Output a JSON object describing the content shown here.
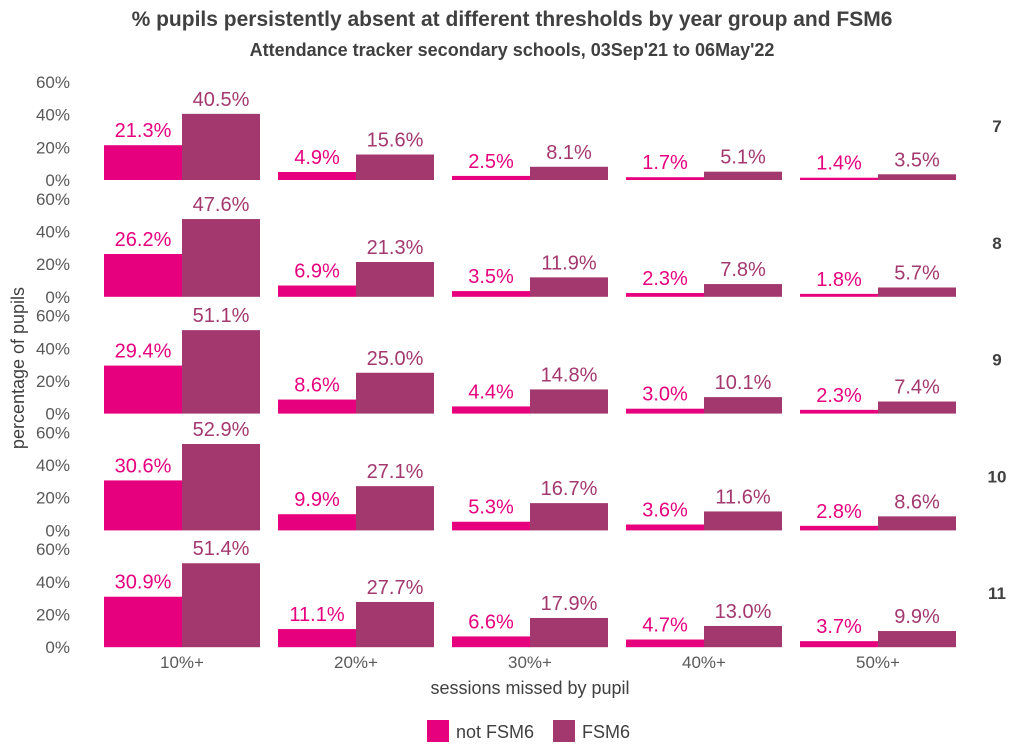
{
  "chart_data": {
    "type": "bar",
    "title": "% pupils persistently absent at different thresholds by year group and FSM6",
    "subtitle": "Attendance tracker secondary schools, 03Sep'21 to 06May'22",
    "xlabel": "sessions missed by pupil",
    "ylabel": "percentage of pupils",
    "categories": [
      "10%+",
      "20%+",
      "30%+",
      "40%+",
      "50%+"
    ],
    "y_ticks": [
      "0%",
      "20%",
      "40%",
      "60%"
    ],
    "ylim": [
      0,
      60
    ],
    "legend_position": "bottom",
    "series_colors": [
      "#e6007e",
      "#a3386f"
    ],
    "series_names": [
      "not FSM6",
      "FSM6"
    ],
    "facets": [
      {
        "label": "7",
        "series": [
          {
            "name": "not FSM6",
            "values": [
              21.3,
              4.9,
              2.5,
              1.7,
              1.4
            ],
            "labels": [
              "21.3%",
              "4.9%",
              "2.5%",
              "1.7%",
              "1.4%"
            ]
          },
          {
            "name": "FSM6",
            "values": [
              40.5,
              15.6,
              8.1,
              5.1,
              3.5
            ],
            "labels": [
              "40.5%",
              "15.6%",
              "8.1%",
              "5.1%",
              "3.5%"
            ]
          }
        ]
      },
      {
        "label": "8",
        "series": [
          {
            "name": "not FSM6",
            "values": [
              26.2,
              6.9,
              3.5,
              2.3,
              1.8
            ],
            "labels": [
              "26.2%",
              "6.9%",
              "3.5%",
              "2.3%",
              "1.8%"
            ]
          },
          {
            "name": "FSM6",
            "values": [
              47.6,
              21.3,
              11.9,
              7.8,
              5.7
            ],
            "labels": [
              "47.6%",
              "21.3%",
              "11.9%",
              "7.8%",
              "5.7%"
            ]
          }
        ]
      },
      {
        "label": "9",
        "series": [
          {
            "name": "not FSM6",
            "values": [
              29.4,
              8.6,
              4.4,
              3.0,
              2.3
            ],
            "labels": [
              "29.4%",
              "8.6%",
              "4.4%",
              "3.0%",
              "2.3%"
            ]
          },
          {
            "name": "FSM6",
            "values": [
              51.1,
              25.0,
              14.8,
              10.1,
              7.4
            ],
            "labels": [
              "51.1%",
              "25.0%",
              "14.8%",
              "10.1%",
              "7.4%"
            ]
          }
        ]
      },
      {
        "label": "10",
        "series": [
          {
            "name": "not FSM6",
            "values": [
              30.6,
              9.9,
              5.3,
              3.6,
              2.8
            ],
            "labels": [
              "30.6%",
              "9.9%",
              "5.3%",
              "3.6%",
              "2.8%"
            ]
          },
          {
            "name": "FSM6",
            "values": [
              52.9,
              27.1,
              16.7,
              11.6,
              8.6
            ],
            "labels": [
              "52.9%",
              "27.1%",
              "16.7%",
              "11.6%",
              "8.6%"
            ]
          }
        ]
      },
      {
        "label": "11",
        "series": [
          {
            "name": "not FSM6",
            "values": [
              30.9,
              11.1,
              6.6,
              4.7,
              3.7
            ],
            "labels": [
              "30.9%",
              "11.1%",
              "6.6%",
              "4.7%",
              "3.7%"
            ]
          },
          {
            "name": "FSM6",
            "values": [
              51.4,
              27.7,
              17.9,
              13.0,
              9.9
            ],
            "labels": [
              "51.4%",
              "27.7%",
              "17.9%",
              "13.0%",
              "9.9%"
            ]
          }
        ]
      }
    ]
  }
}
